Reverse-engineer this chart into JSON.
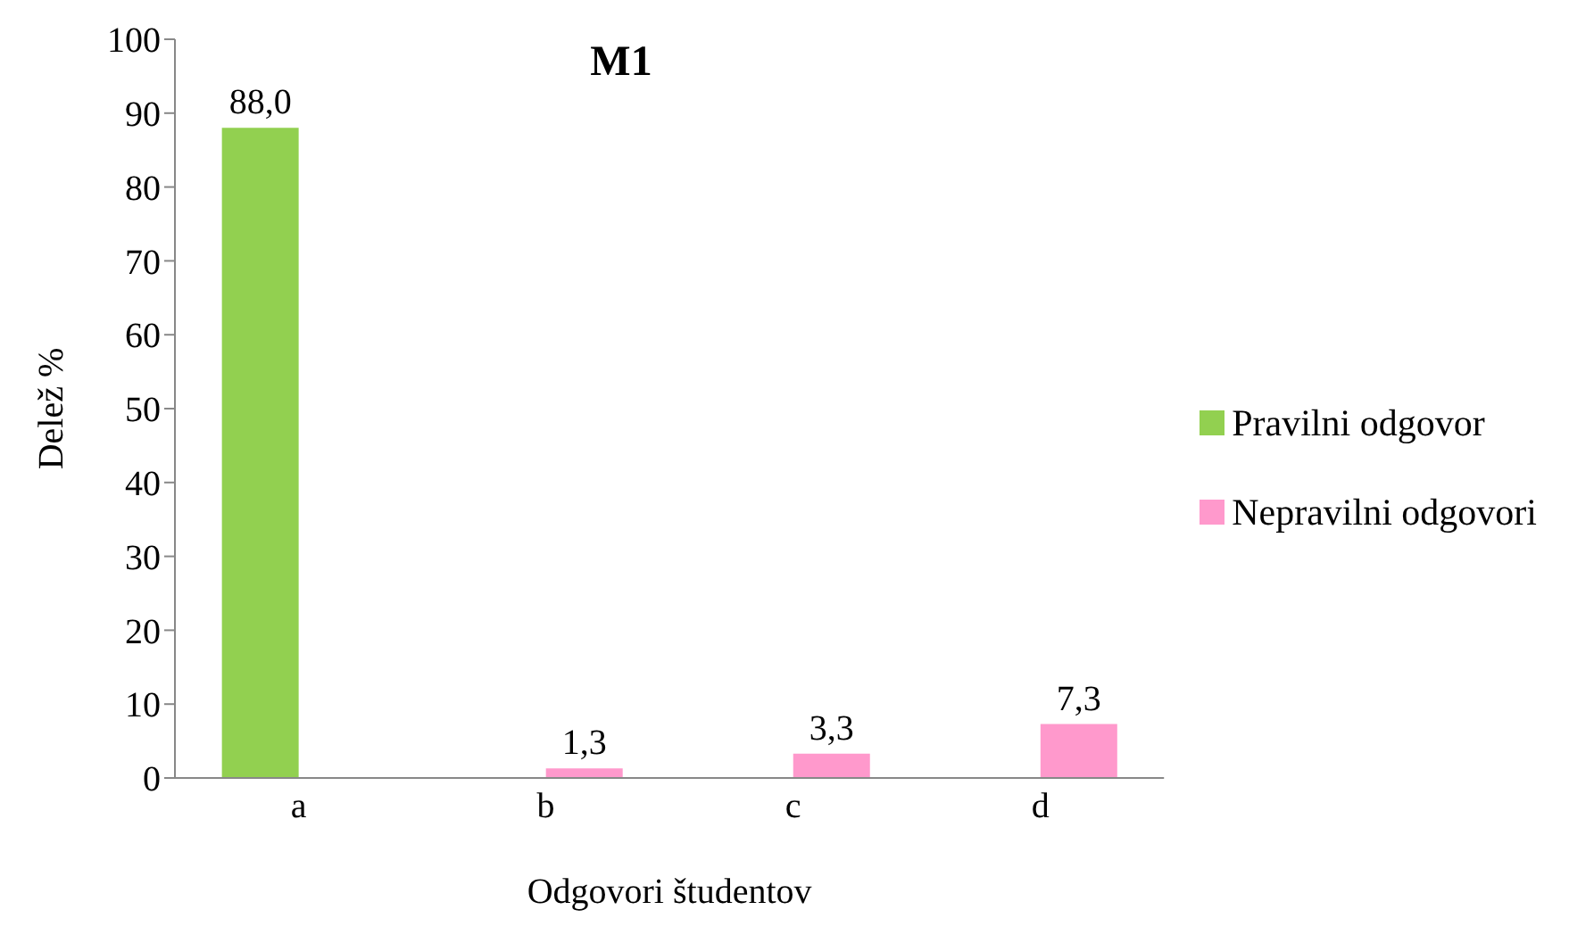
{
  "chart_data": {
    "type": "bar",
    "title": "M1",
    "xlabel": "Odgovori študentov",
    "ylabel": "Delež %",
    "categories": [
      "a",
      "b",
      "c",
      "d"
    ],
    "series": [
      {
        "name": "Pravilni odgovor",
        "color": "#92d050",
        "values": [
          88.0,
          null,
          null,
          null
        ],
        "value_labels": [
          "88,0",
          null,
          null,
          null
        ]
      },
      {
        "name": "Nepravilni odgovori",
        "color": "#ff99cc",
        "values": [
          null,
          1.3,
          3.3,
          7.3
        ],
        "value_labels": [
          null,
          "1,3",
          "3,3",
          "7,3"
        ]
      }
    ],
    "ylim": [
      0,
      100
    ],
    "yticks": [
      0,
      10,
      20,
      30,
      40,
      50,
      60,
      70,
      80,
      90,
      100
    ],
    "grid": false,
    "legend": "right"
  }
}
